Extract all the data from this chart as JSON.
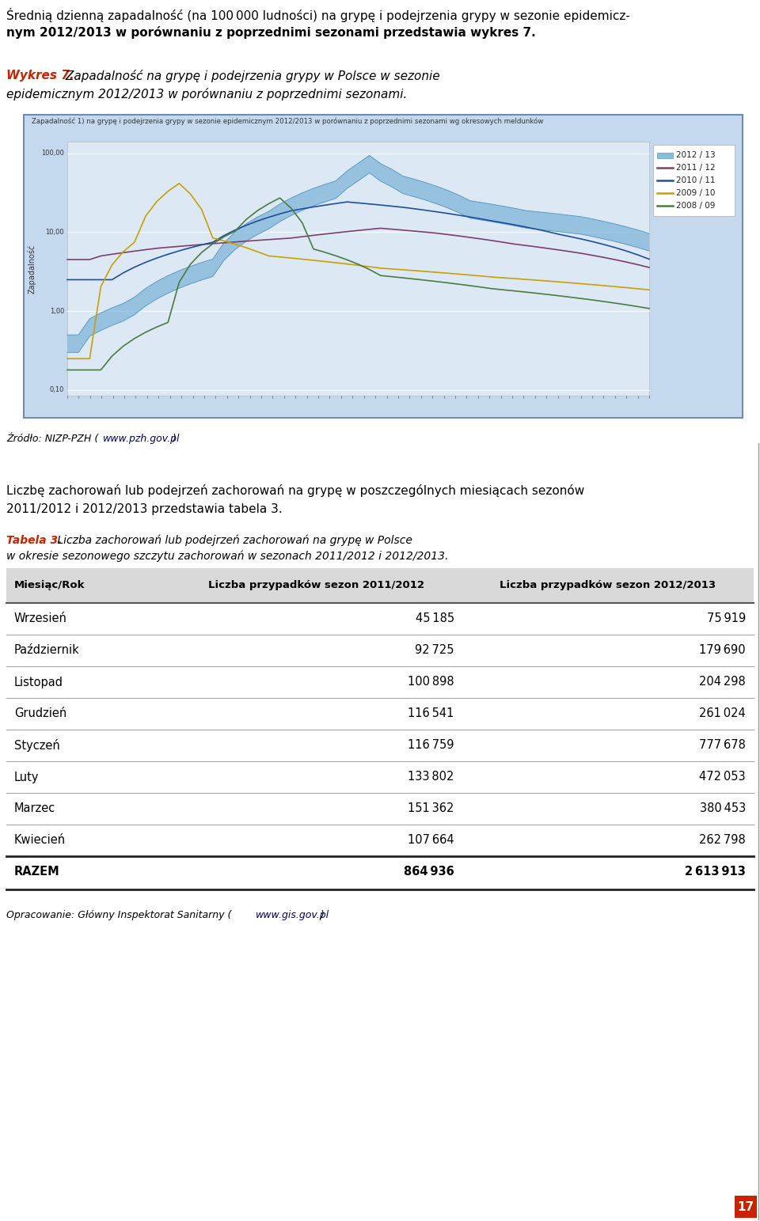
{
  "page_bg": "#ffffff",
  "intro_line1": "Średnią dzienną zapadalność (na 100 000 ludności) na grypę i podejrzenia grypy w sezonie epidemicz-",
  "intro_line2": "nym 2012/2013 w porównaniu z poprzednimi sezonami przedstawia wykres 7.",
  "wykres_label_bold": "Wykres 7.",
  "wykres_label_italic": " Zapadalność na grypę i podejrzenia grypy w Polsce w sezonie",
  "wykres_label_line2": "epidemicznym 2012/2013 w porównaniu z poprzednimi sezonami.",
  "chart_title": "Zapadalność 1) na grypę i podejrzenia grypy w sezonie epidemicznym 2012/2013 w porównaniu z poprzednimi sezonami wg okresowych meldunków",
  "chart_border_color": "#6b8cae",
  "y_label": "Zapadalność",
  "legend_items": [
    {
      "label": "2012 / 13",
      "color": "#8bbcdc",
      "type": "fill"
    },
    {
      "label": "2011 / 12",
      "color": "#7b3f6e",
      "type": "line"
    },
    {
      "label": "2010 / 11",
      "color": "#1f4e9c",
      "type": "line"
    },
    {
      "label": "2009 / 10",
      "color": "#c8a000",
      "type": "line"
    },
    {
      "label": "2008 / 09",
      "color": "#4a7c3f",
      "type": "line"
    }
  ],
  "source_prefix": "Źródło: NIZP-PZH (",
  "source_link": "www.pzh.gov.pl",
  "source_suffix": ")",
  "paragraph_line1": "Liczbę zachorowań lub podejrzeń zachorowań na grypę w poszczególnych miesiącach sezonów",
  "paragraph_line2": "2011/2012 i 2012/2013 przedstawia tabela 3.",
  "tabela_label_bold": "Tabela 3.",
  "tabela_label_italic": " Liczba zachorowań lub podejrzeń zachorowań na grypę w Polsce",
  "tabela_label_line2": "w okresie sezonowego szczytu zachorowań w sezonach 2011/2012 i 2012/2013.",
  "table_header": [
    "Miesiąc/Rok",
    "Liczba przypadków sezon 2011/2012",
    "Liczba przypadków sezon 2012/2013"
  ],
  "table_rows": [
    [
      "Wrzesień",
      "45 185",
      "75 919"
    ],
    [
      "Październik",
      "92 725",
      "179 690"
    ],
    [
      "Listopad",
      "100 898",
      "204 298"
    ],
    [
      "Grudzień",
      "116 541",
      "261 024"
    ],
    [
      "Styczeń",
      "116 759",
      "777 678"
    ],
    [
      "Luty",
      "133 802",
      "472 053"
    ],
    [
      "Marzec",
      "151 362",
      "380 453"
    ],
    [
      "Kwiecień",
      "107 664",
      "262 798"
    ]
  ],
  "table_total": [
    "RAZEM",
    "864 936",
    "2 613 913"
  ],
  "table_header_bg": "#d9d9d9",
  "footer_prefix": "Opracowanie: Główny Inspektorat Sanitarny (",
  "footer_link": "www.gis.gov.pl",
  "footer_suffix": ")",
  "page_number": "17",
  "page_number_bg": "#cc2200"
}
